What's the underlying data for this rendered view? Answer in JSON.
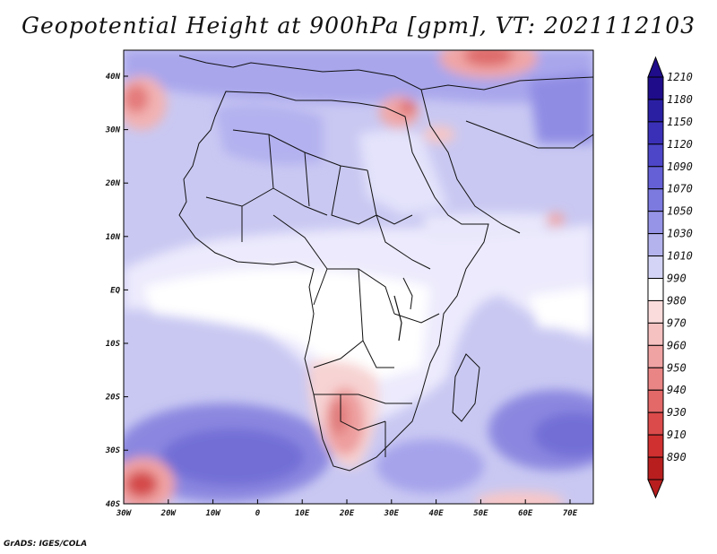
{
  "title": "Geopotential Height at 900hPa [gpm], VT: 2021112103",
  "footer": "GrADS: IGES/COLA",
  "map": {
    "lon_ticks": [
      "30W",
      "20W",
      "10W",
      "0",
      "10E",
      "20E",
      "30E",
      "40E",
      "50E",
      "60E",
      "70E"
    ],
    "lat_ticks": [
      "40N",
      "30N",
      "20N",
      "10N",
      "EQ",
      "10S",
      "20S",
      "30S",
      "40S"
    ]
  },
  "colorbar": {
    "levels": [
      "1210",
      "1180",
      "1150",
      "1120",
      "1090",
      "1070",
      "1050",
      "1030",
      "1010",
      "990",
      "980",
      "970",
      "960",
      "950",
      "940",
      "930",
      "910",
      "890"
    ],
    "colors": [
      "#1e0c8a",
      "#2a1fa3",
      "#3a30b8",
      "#4d46c8",
      "#6560d6",
      "#7c79df",
      "#9694e6",
      "#b4b3ee",
      "#d4d4f6",
      "#ffffff",
      "#fbdcdc",
      "#f6c1c1",
      "#f0a3a3",
      "#ea8585",
      "#e36868",
      "#dc4b4b",
      "#d03030",
      "#b81e1e"
    ]
  }
}
